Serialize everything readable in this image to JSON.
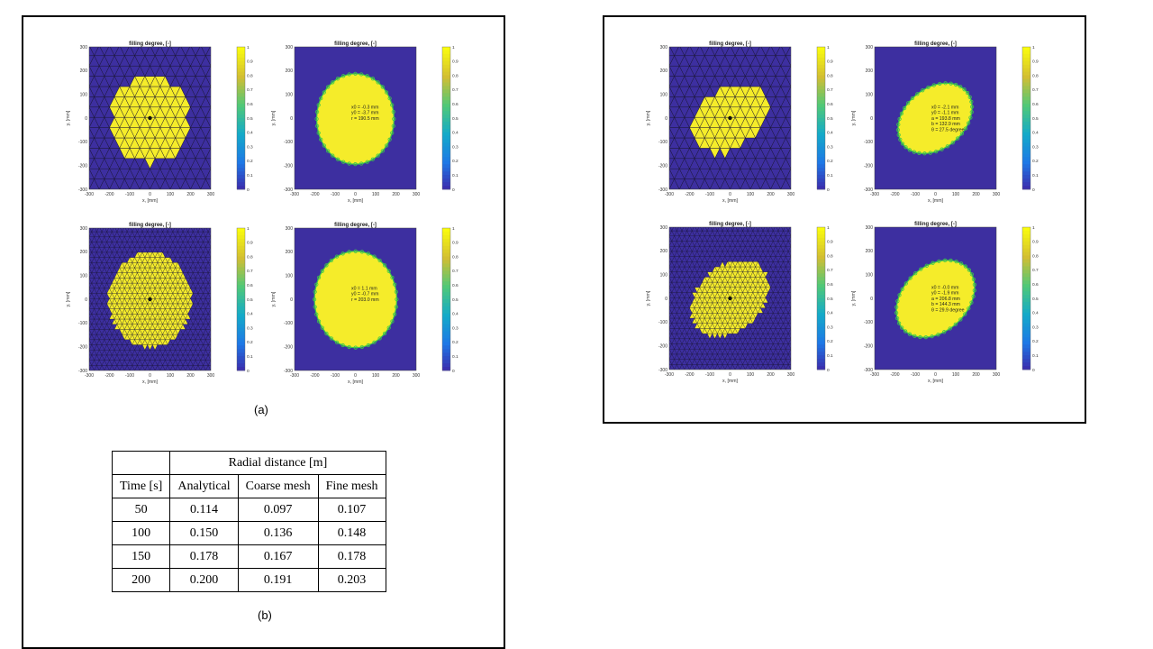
{
  "figure": {
    "caption_a": "(a)",
    "caption_b": "(b)"
  },
  "colors": {
    "empty": "#3d2fa0",
    "filled": "#f5ec2a",
    "mesh_line": "#1a1630",
    "boundary": "#3dc84a"
  },
  "chart_data": [
    {
      "type": "heatmap",
      "panel": "coarse-mesh-circular",
      "title": "filling degree, [-]",
      "xlabel": "x, [mm]",
      "ylabel": "y, [mm]",
      "xlim": [
        -300,
        300
      ],
      "ylim": [
        -300,
        300
      ],
      "xticks": [
        "-300",
        "-200",
        "-100",
        "0",
        "100",
        "200",
        "300"
      ],
      "yticks": [
        "300",
        "200",
        "100",
        "0",
        "-100",
        "-200",
        "-300"
      ],
      "colorbar": {
        "range": [
          0,
          1
        ],
        "ticks": [
          "1",
          "0.9",
          "0.8",
          "0.7",
          "0.6",
          "0.5",
          "0.4",
          "0.3",
          "0.2",
          "0.1",
          "0"
        ]
      },
      "mesh": "coarse",
      "region": {
        "shape": "circle",
        "cx": 0,
        "cy": 0,
        "r": 190,
        "angle": 0
      },
      "annotation": []
    },
    {
      "type": "heatmap",
      "panel": "coarse-fit-circular",
      "title": "filling degree, [-]",
      "xlabel": "x, [mm]",
      "ylabel": "y, [mm]",
      "xlim": [
        -300,
        300
      ],
      "ylim": [
        -300,
        300
      ],
      "xticks": [
        "-300",
        "-200",
        "-100",
        "0",
        "100",
        "200",
        "300"
      ],
      "yticks": [
        "300",
        "200",
        "100",
        "0",
        "-100",
        "-200",
        "-300"
      ],
      "colorbar": {
        "range": [
          0,
          1
        ],
        "ticks": [
          "1",
          "0.9",
          "0.8",
          "0.7",
          "0.6",
          "0.5",
          "0.4",
          "0.3",
          "0.2",
          "0.1",
          "0"
        ]
      },
      "mesh": "none",
      "region": {
        "shape": "circle",
        "cx": -0.3,
        "cy": -3.7,
        "r": 190.5,
        "angle": 0
      },
      "annotation": [
        "x0 = -0.3 mm",
        "y0 = -3.7 mm",
        "r = 190.5 mm"
      ]
    },
    {
      "type": "heatmap",
      "panel": "fine-mesh-circular",
      "title": "filling degree, [-]",
      "xlabel": "x, [mm]",
      "ylabel": "y, [mm]",
      "xlim": [
        -300,
        300
      ],
      "ylim": [
        -300,
        300
      ],
      "xticks": [
        "-300",
        "-200",
        "-100",
        "0",
        "100",
        "200",
        "300"
      ],
      "yticks": [
        "300",
        "200",
        "100",
        "0",
        "-100",
        "-200",
        "-300"
      ],
      "colorbar": {
        "range": [
          0,
          1
        ],
        "ticks": [
          "1",
          "0.9",
          "0.8",
          "0.7",
          "0.6",
          "0.5",
          "0.4",
          "0.3",
          "0.2",
          "0.1",
          "0"
        ]
      },
      "mesh": "fine",
      "region": {
        "shape": "circle",
        "cx": 0,
        "cy": 0,
        "r": 203,
        "angle": 0
      },
      "annotation": []
    },
    {
      "type": "heatmap",
      "panel": "fine-fit-circular",
      "title": "filling degree, [-]",
      "xlabel": "x, [mm]",
      "ylabel": "y, [mm]",
      "xlim": [
        -300,
        300
      ],
      "ylim": [
        -300,
        300
      ],
      "xticks": [
        "-300",
        "-200",
        "-100",
        "0",
        "100",
        "200",
        "300"
      ],
      "yticks": [
        "300",
        "200",
        "100",
        "0",
        "-100",
        "-200",
        "-300"
      ],
      "colorbar": {
        "range": [
          0,
          1
        ],
        "ticks": [
          "1",
          "0.9",
          "0.8",
          "0.7",
          "0.6",
          "0.5",
          "0.4",
          "0.3",
          "0.2",
          "0.1",
          "0"
        ]
      },
      "mesh": "none",
      "region": {
        "shape": "circle",
        "cx": 1.1,
        "cy": -0.7,
        "r": 203.0,
        "angle": 0
      },
      "annotation": [
        "x0 = 1.1 mm",
        "y0 = -0.7 mm",
        "r = 203.0 mm"
      ]
    },
    {
      "type": "heatmap",
      "panel": "coarse-mesh-elliptic",
      "title": "filling degree, [-]",
      "xlabel": "x, [mm]",
      "ylabel": "y, [mm]",
      "xlim": [
        -300,
        300
      ],
      "ylim": [
        -300,
        300
      ],
      "xticks": [
        "-300",
        "-200",
        "-100",
        "0",
        "100",
        "200",
        "300"
      ],
      "yticks": [
        "300",
        "200",
        "100",
        "0",
        "-100",
        "-200",
        "-300"
      ],
      "colorbar": {
        "range": [
          0,
          1
        ],
        "ticks": [
          "1",
          "0.9",
          "0.8",
          "0.7",
          "0.6",
          "0.5",
          "0.4",
          "0.3",
          "0.2",
          "0.1",
          "0"
        ]
      },
      "mesh": "coarse",
      "region": {
        "shape": "ellipse",
        "cx": 0,
        "cy": 0,
        "a": 190,
        "b": 130,
        "angle": 27.5
      },
      "annotation": []
    },
    {
      "type": "heatmap",
      "panel": "coarse-fit-elliptic",
      "title": "filling degree, [-]",
      "xlabel": "x, [mm]",
      "ylabel": "y, [mm]",
      "xlim": [
        -300,
        300
      ],
      "ylim": [
        -300,
        300
      ],
      "xticks": [
        "-300",
        "-200",
        "-100",
        "0",
        "100",
        "200",
        "300"
      ],
      "yticks": [
        "300",
        "200",
        "100",
        "0",
        "-100",
        "-200",
        "-300"
      ],
      "colorbar": {
        "range": [
          0,
          1
        ],
        "ticks": [
          "1",
          "0.9",
          "0.8",
          "0.7",
          "0.6",
          "0.5",
          "0.4",
          "0.3",
          "0.2",
          "0.1",
          "0"
        ]
      },
      "mesh": "none",
      "region": {
        "shape": "ellipse",
        "cx": -2.1,
        "cy": -1.1,
        "a": 193.8,
        "b": 132.9,
        "angle": 27.5
      },
      "annotation": [
        "x0 = -2.1 mm",
        "y0 = -1.1 mm",
        "a = 193.8 mm",
        "b = 132.9 mm",
        "θ = 27.5 degree"
      ]
    },
    {
      "type": "heatmap",
      "panel": "fine-mesh-elliptic",
      "title": "filling degree, [-]",
      "xlabel": "x, [mm]",
      "ylabel": "y, [mm]",
      "xlim": [
        -300,
        300
      ],
      "ylim": [
        -300,
        300
      ],
      "xticks": [
        "-300",
        "-200",
        "-100",
        "0",
        "100",
        "200",
        "300"
      ],
      "yticks": [
        "300",
        "200",
        "100",
        "0",
        "-100",
        "-200",
        "-300"
      ],
      "colorbar": {
        "range": [
          0,
          1
        ],
        "ticks": [
          "1",
          "0.9",
          "0.8",
          "0.7",
          "0.6",
          "0.5",
          "0.4",
          "0.3",
          "0.2",
          "0.1",
          "0"
        ]
      },
      "mesh": "fine",
      "region": {
        "shape": "ellipse",
        "cx": 0,
        "cy": 0,
        "a": 205,
        "b": 143,
        "angle": 29.9
      },
      "annotation": []
    },
    {
      "type": "heatmap",
      "panel": "fine-fit-elliptic",
      "title": "filling degree, [-]",
      "xlabel": "x, [mm]",
      "ylabel": "y, [mm]",
      "xlim": [
        -300,
        300
      ],
      "ylim": [
        -300,
        300
      ],
      "xticks": [
        "-300",
        "-200",
        "-100",
        "0",
        "100",
        "200",
        "300"
      ],
      "yticks": [
        "300",
        "200",
        "100",
        "0",
        "-100",
        "-200",
        "-300"
      ],
      "colorbar": {
        "range": [
          0,
          1
        ],
        "ticks": [
          "1",
          "0.9",
          "0.8",
          "0.7",
          "0.6",
          "0.5",
          "0.4",
          "0.3",
          "0.2",
          "0.1",
          "0"
        ]
      },
      "mesh": "none",
      "region": {
        "shape": "ellipse",
        "cx": -0.0,
        "cy": -1.9,
        "a": 206.8,
        "b": 144.3,
        "angle": 29.9
      },
      "annotation": [
        "x0 = -0.0 mm",
        "y0 = -1.9 mm",
        "a = 206.8 mm",
        "b = 144.3 mm",
        "θ = 29.9 degree"
      ]
    },
    {
      "type": "table",
      "panel": "radial-distance-table",
      "group_header": "Radial distance [m]",
      "columns": [
        "Time [s]",
        "Analytical",
        "Coarse mesh",
        "Fine mesh"
      ],
      "rows": [
        [
          "50",
          "0.114",
          "0.097",
          "0.107"
        ],
        [
          "100",
          "0.150",
          "0.136",
          "0.148"
        ],
        [
          "150",
          "0.178",
          "0.167",
          "0.178"
        ],
        [
          "200",
          "0.200",
          "0.191",
          "0.203"
        ]
      ]
    }
  ]
}
